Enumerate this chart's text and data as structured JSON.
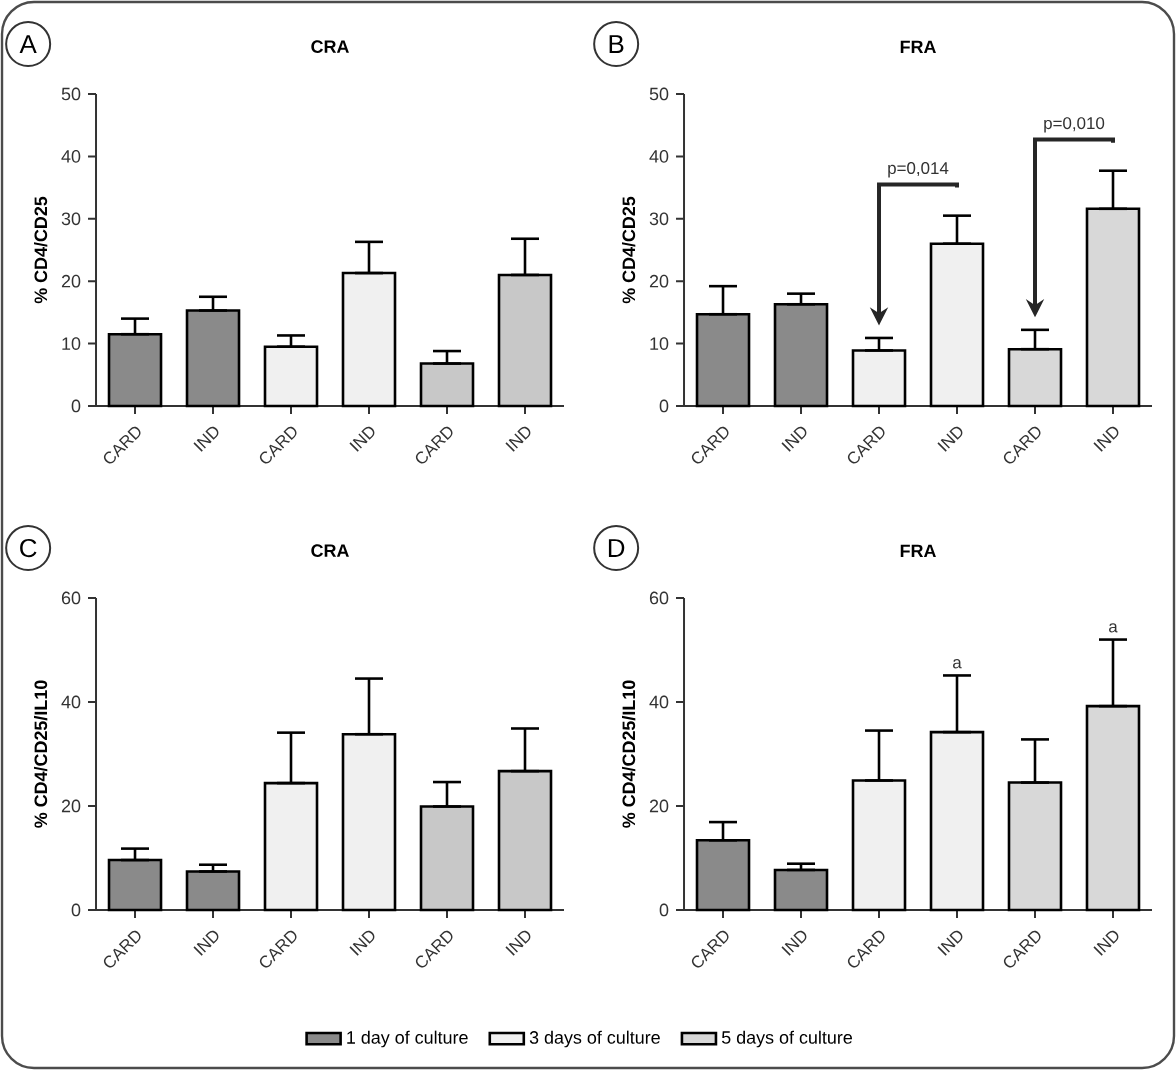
{
  "chart_data": [
    {
      "type": "bar",
      "title": "CRA",
      "ylabel": "% CD4/CD25",
      "categories": [
        "CARD",
        "IND",
        "CARD",
        "IND",
        "CARD",
        "IND"
      ],
      "ylim": [
        0,
        50
      ],
      "yticks": [
        0,
        10,
        20,
        30,
        40,
        50
      ],
      "series": [
        {
          "color": "#8a8a8a",
          "values": [
            11.5,
            15.3,
            null,
            null,
            null,
            null
          ],
          "errors": [
            [
              11.5,
              14
            ],
            [
              15.3,
              17.5
            ],
            null,
            null,
            null,
            null
          ]
        },
        {
          "color": "#f0f0f0",
          "values": [
            null,
            null,
            9.5,
            21.3,
            null,
            null
          ],
          "errors": [
            null,
            null,
            [
              9.5,
              11.3
            ],
            [
              21.3,
              26.3
            ],
            null,
            null
          ]
        },
        {
          "color": "#c8c8c8",
          "values": [
            null,
            null,
            null,
            null,
            6.8,
            21
          ],
          "errors": [
            null,
            null,
            null,
            null,
            [
              6.8,
              8.8
            ],
            [
              21,
              26.8
            ]
          ]
        }
      ],
      "annotations": [
        "A"
      ]
    },
    {
      "type": "bar",
      "title": "FRA",
      "ylabel": "% CD4/CD25",
      "categories": [
        "CARD",
        "IND",
        "CARD",
        "IND",
        "CARD",
        "IND"
      ],
      "ylim": [
        0,
        50
      ],
      "yticks": [
        0,
        10,
        20,
        30,
        40,
        50
      ],
      "series": [
        {
          "color": "#8a8a8a",
          "values": [
            14.7,
            16.3,
            null,
            null,
            null,
            null
          ],
          "errors": [
            [
              14.7,
              19.2
            ],
            [
              16.3,
              18
            ],
            null,
            null,
            null,
            null
          ]
        },
        {
          "color": "#f0f0f0",
          "values": [
            null,
            null,
            8.9,
            26,
            null,
            null
          ],
          "errors": [
            null,
            null,
            [
              8.9,
              10.9
            ],
            [
              26,
              30.5
            ],
            null,
            null
          ]
        },
        {
          "color": "#d8d8d8",
          "values": [
            null,
            null,
            null,
            null,
            9.1,
            31.6
          ],
          "errors": [
            null,
            null,
            null,
            null,
            [
              9.1,
              12.2
            ],
            [
              31.6,
              37.7
            ]
          ]
        }
      ],
      "annotations": [
        "B",
        "p=0,014",
        "p=0,010"
      ]
    },
    {
      "type": "bar",
      "title": "CRA",
      "ylabel": "% CD4/CD25/IL10",
      "categories": [
        "CARD",
        "IND",
        "CARD",
        "IND",
        "CARD",
        "IND"
      ],
      "ylim": [
        0,
        60
      ],
      "yticks": [
        0,
        20,
        40,
        60
      ],
      "series": [
        {
          "color": "#8a8a8a",
          "values": [
            9.6,
            7.4,
            null,
            null,
            null,
            null
          ],
          "errors": [
            [
              9.6,
              11.8
            ],
            [
              7.4,
              8.7
            ],
            null,
            null,
            null,
            null
          ]
        },
        {
          "color": "#f0f0f0",
          "values": [
            null,
            null,
            24.4,
            33.8,
            null,
            null
          ],
          "errors": [
            null,
            null,
            [
              24.4,
              34.1
            ],
            [
              33.8,
              44.5
            ],
            null,
            null
          ]
        },
        {
          "color": "#c8c8c8",
          "values": [
            null,
            null,
            null,
            null,
            19.9,
            26.7
          ],
          "errors": [
            null,
            null,
            null,
            null,
            [
              19.9,
              24.6
            ],
            [
              26.7,
              34.9
            ]
          ]
        }
      ],
      "annotations": [
        "C"
      ]
    },
    {
      "type": "bar",
      "title": "FRA",
      "ylabel": "% CD4/CD25/IL10",
      "categories": [
        "CARD",
        "IND",
        "CARD",
        "IND",
        "CARD",
        "IND"
      ],
      "ylim": [
        0,
        60
      ],
      "yticks": [
        0,
        20,
        40,
        60
      ],
      "legend": "bottom",
      "series": [
        {
          "name": "1 day of culture",
          "color": "#8a8a8a",
          "values": [
            13.4,
            7.7,
            null,
            null,
            null,
            null
          ],
          "errors": [
            [
              13.4,
              16.9
            ],
            [
              7.7,
              8.9
            ],
            null,
            null,
            null,
            null
          ]
        },
        {
          "name": "3 days of culture",
          "color": "#f0f0f0",
          "values": [
            null,
            null,
            24.9,
            34.2,
            null,
            null
          ],
          "errors": [
            null,
            null,
            [
              24.9,
              34.5
            ],
            [
              34.2,
              45.1
            ],
            null,
            null
          ]
        },
        {
          "name": "5 days of culture",
          "color": "#d8d8d8",
          "values": [
            null,
            null,
            null,
            null,
            24.5,
            39.2
          ],
          "errors": [
            null,
            null,
            null,
            null,
            [
              24.5,
              32.8
            ],
            [
              39.2,
              52
            ]
          ]
        }
      ],
      "annotations": [
        "D",
        "a",
        "a"
      ]
    }
  ]
}
